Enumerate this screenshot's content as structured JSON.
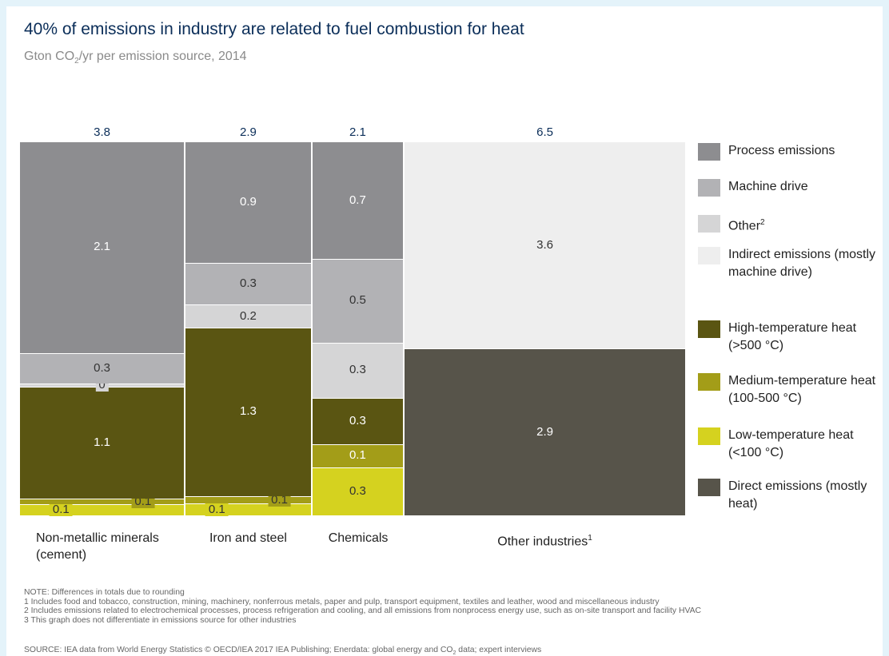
{
  "chart_data": {
    "type": "mekko",
    "title": "40% of emissions in industry are related to fuel combustion for heat",
    "subtitle": [
      "Gton CO",
      "2",
      "/yr per emission source, 2014"
    ],
    "categories": [
      "Non-metallic minerals (cement)",
      "Iron and steel",
      "Chemicals",
      "Other industries"
    ],
    "category_footnotes": [
      null,
      null,
      null,
      "1"
    ],
    "totals": [
      3.8,
      2.9,
      2.1,
      6.5
    ],
    "series": [
      {
        "name": "Process emissions",
        "color": "#8d8d90",
        "values": [
          2.14,
          0.94,
          0.66,
          null
        ],
        "value_labels": [
          "2.1",
          "0.9",
          "0.7",
          null
        ]
      },
      {
        "name": "Machine drive",
        "color": "#b2b2b5",
        "values": [
          0.31,
          0.32,
          0.47,
          null
        ],
        "value_labels": [
          "0.3",
          "0.3",
          "0.5",
          null
        ]
      },
      {
        "name": "Other",
        "footnote": "2",
        "color": "#d5d5d6",
        "values": [
          0.03,
          0.18,
          0.31,
          null
        ],
        "value_labels": [
          "0",
          "0.2",
          "0.3",
          null
        ]
      },
      {
        "name": "Indirect emissions (mostly machine drive)",
        "color": "#eeeeee",
        "values": [
          null,
          null,
          null,
          3.6
        ]
      },
      {
        "name": "High-temperature heat (>500 °C)",
        "color": "#5a5512",
        "values": [
          1.13,
          1.3,
          0.26,
          null
        ],
        "value_labels": [
          "1.1",
          "1.3",
          "0.3",
          null
        ]
      },
      {
        "name": "Medium-temperature heat (100-500 °C)",
        "color": "#a39d18",
        "values": [
          0.06,
          0.06,
          0.13,
          null
        ],
        "value_labels": [
          "0.1",
          "0.1",
          "0.1",
          null
        ]
      },
      {
        "name": "Low-temperature heat (<100 °C)",
        "color": "#d5d21f",
        "values": [
          0.11,
          0.09,
          0.27,
          null
        ],
        "value_labels": [
          "0.1",
          "0.1",
          "0.3",
          null
        ]
      },
      {
        "name": "Direct emissions (mostly heat)",
        "color": "#57544a",
        "values": [
          null,
          null,
          null,
          2.9
        ]
      }
    ],
    "notes": [
      "NOTE: Differences in totals due to rounding",
      "1 Includes food and tobacco, construction, mining, machinery, nonferrous metals, paper and pulp, transport equipment, textiles and leather, wood and miscellaneous industry",
      "2 Includes emissions related to electrochemical processes, process refrigeration and cooling, and all emissions from nonprocess energy use, such as on-site transport and facility HVAC",
      "3  This graph does not differentiate in emissions source for other industries"
    ],
    "source": [
      "SOURCE: IEA data from World Energy Statistics © OECD/IEA 2017 IEA Publishing; Enerdata: global energy and CO",
      "2",
      " data; expert interviews"
    ]
  }
}
